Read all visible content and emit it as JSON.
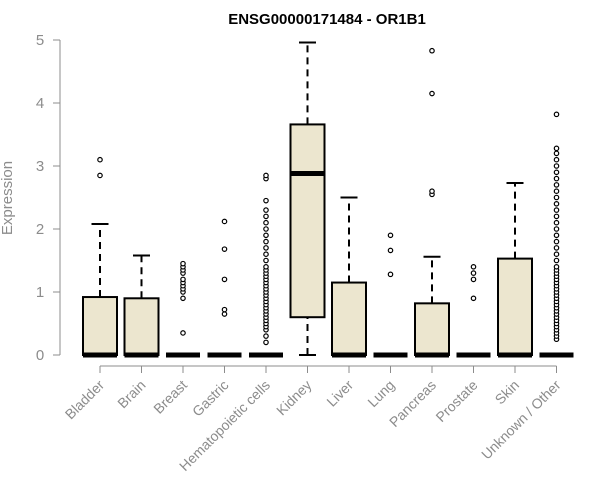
{
  "chart_data": {
    "type": "boxplot",
    "title": "ENSG00000171484 - OR1B1",
    "ylabel": "Expression",
    "xlabel": "",
    "ylim": [
      0,
      5
    ],
    "yticks": [
      0,
      1,
      2,
      3,
      4,
      5
    ],
    "box_fill": "#ece6cf",
    "categories": [
      "Bladder",
      "Brain",
      "Breast",
      "Gastric",
      "Hematopoietic cells",
      "Kidney",
      "Liver",
      "Lung",
      "Pancreas",
      "Prostate",
      "Skin",
      "Unknown / Other"
    ],
    "boxes": [
      {
        "min": 0,
        "q1": 0,
        "median": 0,
        "q3": 0.92,
        "max": 2.08,
        "outliers": [
          2.85,
          3.1
        ]
      },
      {
        "min": 0,
        "q1": 0,
        "median": 0,
        "q3": 0.9,
        "max": 1.58,
        "outliers": []
      },
      {
        "min": 0,
        "q1": 0,
        "median": 0,
        "q3": 0,
        "max": 0,
        "outliers": [
          0.35,
          0.9,
          1.0,
          1.05,
          1.1,
          1.15,
          1.2,
          1.3,
          1.35,
          1.4,
          1.45
        ]
      },
      {
        "min": 0,
        "q1": 0,
        "median": 0,
        "q3": 0,
        "max": 0,
        "outliers": [
          0.65,
          0.72,
          1.2,
          1.68,
          2.12
        ]
      },
      {
        "min": 0,
        "q1": 0,
        "median": 0,
        "q3": 0,
        "max": 0,
        "outliers": [
          0.2,
          0.3,
          0.4,
          0.45,
          0.5,
          0.55,
          0.6,
          0.65,
          0.7,
          0.75,
          0.8,
          0.85,
          0.9,
          0.95,
          1.0,
          1.05,
          1.1,
          1.15,
          1.2,
          1.25,
          1.3,
          1.35,
          1.4,
          1.5,
          1.6,
          1.7,
          1.8,
          1.9,
          2.0,
          2.1,
          2.2,
          2.3,
          2.45,
          2.8,
          2.85
        ]
      },
      {
        "min": 0,
        "q1": 0.6,
        "median": 2.88,
        "q3": 3.66,
        "max": 4.96,
        "outliers": []
      },
      {
        "min": 0,
        "q1": 0,
        "median": 0,
        "q3": 1.15,
        "max": 2.5,
        "outliers": []
      },
      {
        "min": 0,
        "q1": 0,
        "median": 0,
        "q3": 0,
        "max": 0,
        "outliers": [
          1.28,
          1.66,
          1.9
        ]
      },
      {
        "min": 0,
        "q1": 0,
        "median": 0,
        "q3": 0.82,
        "max": 1.56,
        "outliers": [
          2.55,
          2.6,
          4.15,
          4.83
        ]
      },
      {
        "min": 0,
        "q1": 0,
        "median": 0,
        "q3": 0,
        "max": 0,
        "outliers": [
          0.9,
          1.2,
          1.3,
          1.4
        ]
      },
      {
        "min": 0,
        "q1": 0,
        "median": 0,
        "q3": 1.53,
        "max": 2.73,
        "outliers": []
      },
      {
        "min": 0,
        "q1": 0,
        "median": 0,
        "q3": 0,
        "max": 0,
        "outliers": [
          0.25,
          0.3,
          0.35,
          0.4,
          0.45,
          0.5,
          0.55,
          0.6,
          0.65,
          0.7,
          0.75,
          0.8,
          0.85,
          0.9,
          0.95,
          1.0,
          1.05,
          1.1,
          1.15,
          1.2,
          1.25,
          1.3,
          1.35,
          1.4,
          1.5,
          1.6,
          1.7,
          1.8,
          1.9,
          2.0,
          2.1,
          2.2,
          2.3,
          2.4,
          2.5,
          2.6,
          2.7,
          2.8,
          2.9,
          3.0,
          3.1,
          3.2,
          3.28,
          3.82
        ]
      }
    ]
  }
}
